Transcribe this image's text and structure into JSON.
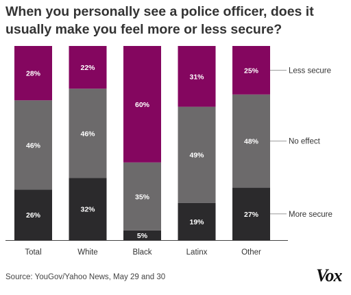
{
  "title": "When you personally see a police officer, does it usually make you feel more or less secure?",
  "source": "Source: YouGov/Yahoo News, May 29 and 30",
  "logo": "Vox",
  "chart_data": {
    "type": "bar",
    "stacked": true,
    "orientation": "vertical",
    "normalized_to_percent": true,
    "categories": [
      "Total",
      "White",
      "Black",
      "Latinx",
      "Other"
    ],
    "series": [
      {
        "name": "More secure",
        "values": [
          26,
          32,
          5,
          19,
          27
        ],
        "labels": [
          "26%",
          "32%",
          "5%",
          "19%",
          "27%"
        ],
        "color": "#2b2a2c"
      },
      {
        "name": "No effect",
        "values": [
          46,
          46,
          35,
          49,
          48
        ],
        "labels": [
          "46%",
          "46%",
          "35%",
          "49%",
          "48%"
        ],
        "color": "#6c6a6b"
      },
      {
        "name": "Less secure",
        "values": [
          28,
          22,
          60,
          31,
          25
        ],
        "labels": [
          "28%",
          "22%",
          "60%",
          "31%",
          "25%"
        ],
        "color": "#84065f"
      }
    ],
    "legend_placement": "right",
    "ylim": [
      0,
      100
    ],
    "grid": false,
    "axis_line_color": "#444444"
  }
}
